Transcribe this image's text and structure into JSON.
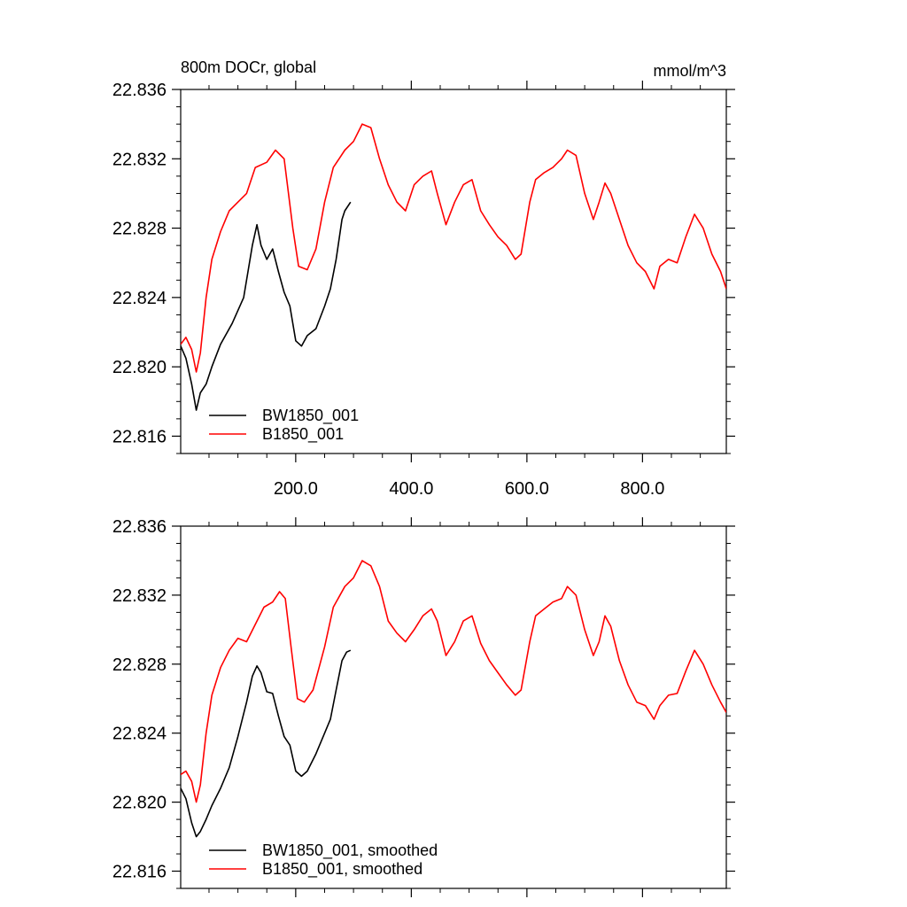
{
  "chart_data": [
    {
      "type": "line",
      "panel": "top",
      "title": "800m DOCr, global",
      "units_label": "mmol/m^3",
      "xlim": [
        1,
        945
      ],
      "ylim": [
        22.815,
        22.836
      ],
      "y_ticks": [
        22.816,
        22.82,
        22.824,
        22.828,
        22.832,
        22.836
      ],
      "y_tick_labels": [
        "22.816",
        "22.820",
        "22.824",
        "22.828",
        "22.832",
        "22.836"
      ],
      "x_ticks": [
        200,
        400,
        600,
        800
      ],
      "x_tick_labels": [
        "200.0",
        "400.0",
        "600.0",
        "800.0"
      ],
      "legend_position": "lower-left",
      "series": [
        {
          "name": "BW1850_001",
          "color": "#000000",
          "points": [
            [
              1,
              22.8212
            ],
            [
              10,
              22.8205
            ],
            [
              20,
              22.819
            ],
            [
              28,
              22.8175
            ],
            [
              35,
              22.8185
            ],
            [
              45,
              22.819
            ],
            [
              55,
              22.82
            ],
            [
              70,
              22.8213
            ],
            [
              90,
              22.8225
            ],
            [
              110,
              22.824
            ],
            [
              125,
              22.827
            ],
            [
              133,
              22.8282
            ],
            [
              140,
              22.827
            ],
            [
              150,
              22.8262
            ],
            [
              160,
              22.8268
            ],
            [
              170,
              22.8255
            ],
            [
              180,
              22.8243
            ],
            [
              190,
              22.8235
            ],
            [
              200,
              22.8215
            ],
            [
              210,
              22.8212
            ],
            [
              220,
              22.8218
            ],
            [
              235,
              22.8222
            ],
            [
              250,
              22.8235
            ],
            [
              260,
              22.8245
            ],
            [
              270,
              22.8262
            ],
            [
              280,
              22.8285
            ],
            [
              285,
              22.829
            ],
            [
              295,
              22.8295
            ]
          ]
        },
        {
          "name": "B1850_001",
          "color": "#ff0000",
          "points": [
            [
              1,
              22.8213
            ],
            [
              10,
              22.8217
            ],
            [
              20,
              22.821
            ],
            [
              28,
              22.8197
            ],
            [
              35,
              22.8208
            ],
            [
              45,
              22.824
            ],
            [
              55,
              22.8262
            ],
            [
              70,
              22.8278
            ],
            [
              85,
              22.829
            ],
            [
              100,
              22.8295
            ],
            [
              115,
              22.83
            ],
            [
              130,
              22.8315
            ],
            [
              150,
              22.8318
            ],
            [
              165,
              22.8325
            ],
            [
              180,
              22.832
            ],
            [
              195,
              22.828
            ],
            [
              205,
              22.8258
            ],
            [
              220,
              22.8256
            ],
            [
              235,
              22.8268
            ],
            [
              250,
              22.8295
            ],
            [
              265,
              22.8315
            ],
            [
              285,
              22.8325
            ],
            [
              300,
              22.833
            ],
            [
              315,
              22.834
            ],
            [
              330,
              22.8338
            ],
            [
              345,
              22.832
            ],
            [
              360,
              22.8305
            ],
            [
              375,
              22.8295
            ],
            [
              390,
              22.829
            ],
            [
              405,
              22.8305
            ],
            [
              420,
              22.831
            ],
            [
              435,
              22.8313
            ],
            [
              445,
              22.83
            ],
            [
              460,
              22.8282
            ],
            [
              475,
              22.8295
            ],
            [
              490,
              22.8305
            ],
            [
              505,
              22.8308
            ],
            [
              520,
              22.829
            ],
            [
              535,
              22.8282
            ],
            [
              550,
              22.8275
            ],
            [
              565,
              22.827
            ],
            [
              580,
              22.8262
            ],
            [
              590,
              22.8265
            ],
            [
              605,
              22.8295
            ],
            [
              615,
              22.8308
            ],
            [
              630,
              22.8312
            ],
            [
              645,
              22.8315
            ],
            [
              660,
              22.832
            ],
            [
              670,
              22.8325
            ],
            [
              685,
              22.8322
            ],
            [
              700,
              22.83
            ],
            [
              715,
              22.8285
            ],
            [
              725,
              22.8295
            ],
            [
              735,
              22.8306
            ],
            [
              745,
              22.83
            ],
            [
              760,
              22.8285
            ],
            [
              775,
              22.827
            ],
            [
              790,
              22.826
            ],
            [
              805,
              22.8255
            ],
            [
              820,
              22.8245
            ],
            [
              830,
              22.8258
            ],
            [
              845,
              22.8262
            ],
            [
              860,
              22.826
            ],
            [
              875,
              22.8275
            ],
            [
              890,
              22.8288
            ],
            [
              905,
              22.828
            ],
            [
              920,
              22.8265
            ],
            [
              935,
              22.8255
            ],
            [
              945,
              22.8245
            ]
          ]
        }
      ]
    },
    {
      "type": "line",
      "panel": "bottom",
      "title": "",
      "xlim": [
        1,
        945
      ],
      "ylim": [
        22.815,
        22.836
      ],
      "y_ticks": [
        22.816,
        22.82,
        22.824,
        22.828,
        22.832,
        22.836
      ],
      "y_tick_labels": [
        "22.816",
        "22.820",
        "22.824",
        "22.828",
        "22.832",
        "22.836"
      ],
      "legend_position": "lower-left",
      "series": [
        {
          "name": "BW1850_001, smoothed",
          "color": "#000000",
          "points": [
            [
              1,
              22.8208
            ],
            [
              10,
              22.8202
            ],
            [
              20,
              22.8188
            ],
            [
              28,
              22.818
            ],
            [
              35,
              22.8183
            ],
            [
              45,
              22.819
            ],
            [
              55,
              22.8198
            ],
            [
              70,
              22.8208
            ],
            [
              85,
              22.822
            ],
            [
              100,
              22.8238
            ],
            [
              115,
              22.8258
            ],
            [
              125,
              22.8273
            ],
            [
              133,
              22.8279
            ],
            [
              140,
              22.8275
            ],
            [
              150,
              22.8264
            ],
            [
              160,
              22.8263
            ],
            [
              170,
              22.825
            ],
            [
              180,
              22.8238
            ],
            [
              190,
              22.8233
            ],
            [
              200,
              22.8218
            ],
            [
              210,
              22.8215
            ],
            [
              220,
              22.8218
            ],
            [
              235,
              22.8228
            ],
            [
              250,
              22.824
            ],
            [
              260,
              22.8248
            ],
            [
              270,
              22.8265
            ],
            [
              280,
              22.8282
            ],
            [
              288,
              22.8287
            ],
            [
              295,
              22.8288
            ]
          ]
        },
        {
          "name": "B1850_001, smoothed",
          "color": "#ff0000",
          "points": [
            [
              1,
              22.8216
            ],
            [
              10,
              22.8218
            ],
            [
              20,
              22.8212
            ],
            [
              28,
              22.82
            ],
            [
              35,
              22.821
            ],
            [
              45,
              22.824
            ],
            [
              55,
              22.8262
            ],
            [
              70,
              22.8278
            ],
            [
              85,
              22.8288
            ],
            [
              100,
              22.8295
            ],
            [
              115,
              22.8293
            ],
            [
              130,
              22.8303
            ],
            [
              145,
              22.8313
            ],
            [
              160,
              22.8316
            ],
            [
              172,
              22.8322
            ],
            [
              182,
              22.8318
            ],
            [
              192,
              22.829
            ],
            [
              203,
              22.826
            ],
            [
              215,
              22.8258
            ],
            [
              230,
              22.8265
            ],
            [
              250,
              22.829
            ],
            [
              265,
              22.8313
            ],
            [
              285,
              22.8325
            ],
            [
              300,
              22.833
            ],
            [
              315,
              22.834
            ],
            [
              330,
              22.8337
            ],
            [
              345,
              22.8325
            ],
            [
              360,
              22.8305
            ],
            [
              375,
              22.8298
            ],
            [
              390,
              22.8293
            ],
            [
              405,
              22.83
            ],
            [
              420,
              22.8308
            ],
            [
              435,
              22.8312
            ],
            [
              445,
              22.8305
            ],
            [
              460,
              22.8285
            ],
            [
              475,
              22.8293
            ],
            [
              490,
              22.8305
            ],
            [
              505,
              22.8308
            ],
            [
              520,
              22.8292
            ],
            [
              535,
              22.8282
            ],
            [
              550,
              22.8275
            ],
            [
              565,
              22.8268
            ],
            [
              580,
              22.8262
            ],
            [
              590,
              22.8265
            ],
            [
              605,
              22.8293
            ],
            [
              615,
              22.8308
            ],
            [
              630,
              22.8312
            ],
            [
              645,
              22.8316
            ],
            [
              660,
              22.8318
            ],
            [
              670,
              22.8325
            ],
            [
              685,
              22.832
            ],
            [
              700,
              22.83
            ],
            [
              715,
              22.8285
            ],
            [
              725,
              22.8293
            ],
            [
              735,
              22.8308
            ],
            [
              745,
              22.8302
            ],
            [
              760,
              22.8282
            ],
            [
              775,
              22.8268
            ],
            [
              790,
              22.8258
            ],
            [
              805,
              22.8256
            ],
            [
              820,
              22.8248
            ],
            [
              830,
              22.8256
            ],
            [
              845,
              22.8262
            ],
            [
              860,
              22.8263
            ],
            [
              875,
              22.8276
            ],
            [
              890,
              22.8288
            ],
            [
              905,
              22.828
            ],
            [
              920,
              22.8268
            ],
            [
              935,
              22.8258
            ],
            [
              945,
              22.8252
            ]
          ]
        }
      ]
    }
  ]
}
